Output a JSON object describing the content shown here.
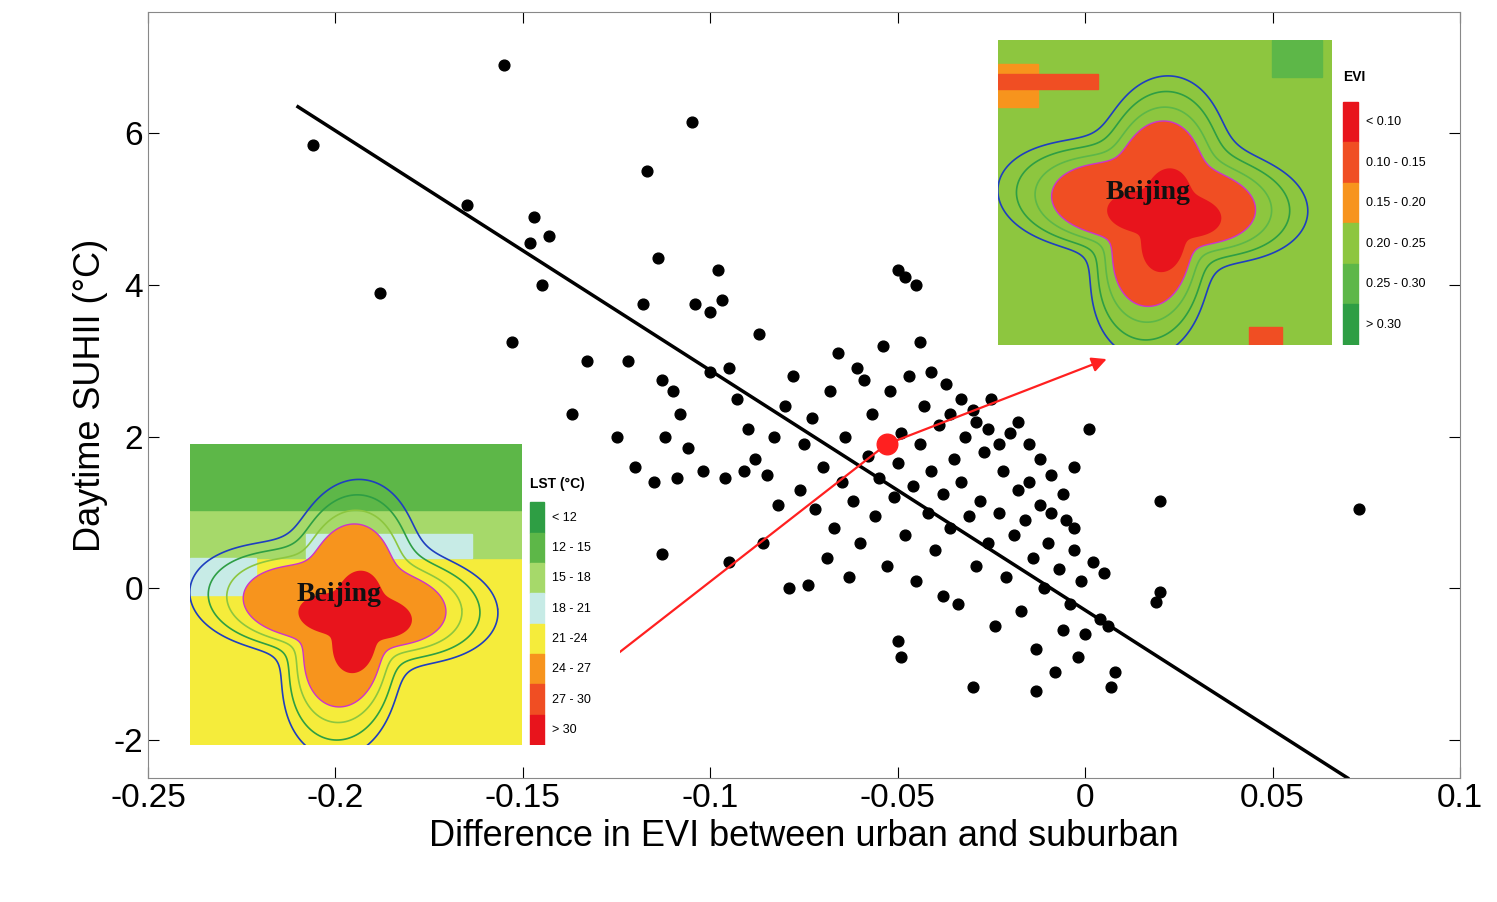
{
  "chart_data": {
    "type": "scatter",
    "xlabel": "Difference in EVI between urban and suburban",
    "ylabel": "Daytime SUHII (°C)",
    "xlim": [
      -0.25,
      0.1
    ],
    "xticks": [
      -0.25,
      -0.2,
      -0.15,
      -0.1,
      -0.05,
      {
        "value": 0.0,
        "label": "0"
      },
      0.05,
      0.1
    ],
    "ylim": [
      -2.5,
      7.6
    ],
    "yticks": [
      -2,
      0,
      2,
      4,
      6
    ],
    "color": "#000000",
    "marker": "o",
    "x": [
      -0.206,
      -0.155,
      -0.105,
      -0.165,
      -0.188,
      -0.147,
      -0.148,
      -0.143,
      -0.145,
      -0.153,
      -0.117,
      -0.114,
      -0.098,
      -0.104,
      -0.118,
      -0.097,
      -0.1,
      -0.05,
      -0.048,
      -0.045,
      -0.133,
      -0.137,
      -0.122,
      0.073,
      0.02,
      0.02,
      0.019,
      -0.03,
      -0.013,
      0.007,
      -0.05,
      -0.049,
      -0.113,
      -0.095,
      0.001,
      -0.003,
      -0.087,
      -0.11,
      -0.108,
      -0.112,
      -0.106,
      -0.102,
      -0.1,
      -0.095,
      -0.093,
      -0.09,
      -0.088,
      -0.085,
      -0.083,
      -0.08,
      -0.078,
      -0.076,
      -0.075,
      -0.073,
      -0.072,
      -0.07,
      -0.068,
      -0.067,
      -0.065,
      -0.064,
      -0.062,
      -0.061,
      -0.06,
      -0.058,
      -0.057,
      -0.056,
      -0.055,
      -0.054,
      -0.053,
      -0.052,
      -0.051,
      -0.05,
      -0.049,
      -0.048,
      -0.047,
      -0.046,
      -0.045,
      -0.044,
      -0.043,
      -0.042,
      -0.041,
      -0.04,
      -0.039,
      -0.038,
      -0.037,
      -0.036,
      -0.035,
      -0.034,
      -0.033,
      -0.032,
      -0.031,
      -0.03,
      -0.029,
      -0.028,
      -0.027,
      -0.026,
      -0.025,
      -0.024,
      -0.023,
      -0.022,
      -0.021,
      -0.02,
      -0.019,
      -0.018,
      -0.017,
      -0.016,
      -0.015,
      -0.014,
      -0.013,
      -0.012,
      -0.011,
      -0.01,
      -0.009,
      -0.008,
      -0.007,
      -0.006,
      -0.005,
      -0.004,
      -0.003,
      -0.002,
      -0.001,
      0.0,
      0.002,
      0.004,
      0.006,
      0.008,
      0.005,
      -0.128,
      -0.125,
      -0.12,
      -0.115,
      -0.113,
      -0.109,
      -0.096,
      -0.091,
      -0.086,
      -0.082,
      -0.079,
      -0.074,
      -0.069,
      -0.066,
      -0.063,
      -0.059,
      -0.044,
      -0.041,
      -0.038,
      -0.036,
      -0.033,
      -0.029,
      -0.026,
      -0.023,
      -0.018,
      -0.015,
      -0.012,
      -0.009,
      -0.006,
      -0.003
    ],
    "values": [
      5.85,
      6.9,
      6.15,
      5.05,
      3.9,
      4.9,
      4.55,
      4.65,
      4.0,
      3.25,
      5.5,
      4.35,
      4.2,
      3.75,
      3.75,
      3.8,
      3.65,
      4.2,
      4.1,
      4.0,
      3.0,
      2.3,
      3.0,
      1.05,
      1.15,
      -0.05,
      -0.18,
      -1.3,
      -1.35,
      -1.3,
      -0.7,
      -0.9,
      0.45,
      0.35,
      2.1,
      1.6,
      3.35,
      2.6,
      2.3,
      2.0,
      1.85,
      1.55,
      2.85,
      2.9,
      2.5,
      2.1,
      1.7,
      1.5,
      2.0,
      2.4,
      2.8,
      1.3,
      1.9,
      2.25,
      1.05,
      1.6,
      2.6,
      0.8,
      1.4,
      2.0,
      1.15,
      2.9,
      0.6,
      1.75,
      2.3,
      0.95,
      1.45,
      3.2,
      0.3,
      2.6,
      1.2,
      1.65,
      2.05,
      0.7,
      2.8,
      1.35,
      0.1,
      1.9,
      2.4,
      1.0,
      1.55,
      0.5,
      2.15,
      1.25,
      2.7,
      0.8,
      1.7,
      -0.2,
      1.4,
      2.0,
      0.95,
      2.35,
      0.3,
      1.15,
      1.8,
      0.6,
      2.5,
      -0.5,
      1.0,
      1.55,
      0.15,
      2.05,
      0.7,
      1.3,
      -0.3,
      0.9,
      1.9,
      0.4,
      -0.8,
      1.1,
      0.0,
      0.6,
      1.5,
      -1.1,
      0.25,
      -0.55,
      0.9,
      -0.2,
      0.5,
      -0.9,
      0.1,
      -0.6,
      0.35,
      -0.4,
      -0.5,
      -1.1,
      0.2,
      1.5,
      2.0,
      1.6,
      1.4,
      2.75,
      1.45,
      1.45,
      1.55,
      0.6,
      1.1,
      0.0,
      0.05,
      0.4,
      3.1,
      0.15,
      2.75,
      3.25,
      2.85,
      -0.1,
      2.3,
      2.5,
      2.2,
      2.1,
      1.9,
      2.2,
      1.4,
      1.7,
      1.0,
      1.25,
      0.8
    ],
    "fit": {
      "x": [
        -0.21,
        0.07
      ],
      "values": [
        6.35,
        -2.5
      ],
      "color": "#000000"
    },
    "highlight": {
      "x": -0.053,
      "values": 1.9,
      "color": "#ff2020"
    },
    "insets": [
      {
        "title": "EVI",
        "label": "Beijing",
        "legend_labels": [
          "< 0.10",
          "0.10 - 0.15",
          "0.15 - 0.20",
          "0.20 - 0.25",
          "0.25 - 0.30",
          "> 0.30"
        ],
        "colors": [
          "#e8141c",
          "#f04e23",
          "#f7941d",
          "#8dc63f",
          "#5db748",
          "#2e9e44"
        ]
      },
      {
        "title": "LST (°C)",
        "label": "Beijing",
        "legend_labels": [
          "< 12",
          "12 - 15",
          "15 - 18",
          "18 - 21",
          "21 -24",
          "24 - 27",
          "27 - 30",
          "> 30"
        ],
        "colors": [
          "#2e9e44",
          "#5db748",
          "#a6d96a",
          "#c7ebe6",
          "#f5ec3b",
          "#f7941d",
          "#f04e23",
          "#e8141c"
        ]
      }
    ]
  }
}
